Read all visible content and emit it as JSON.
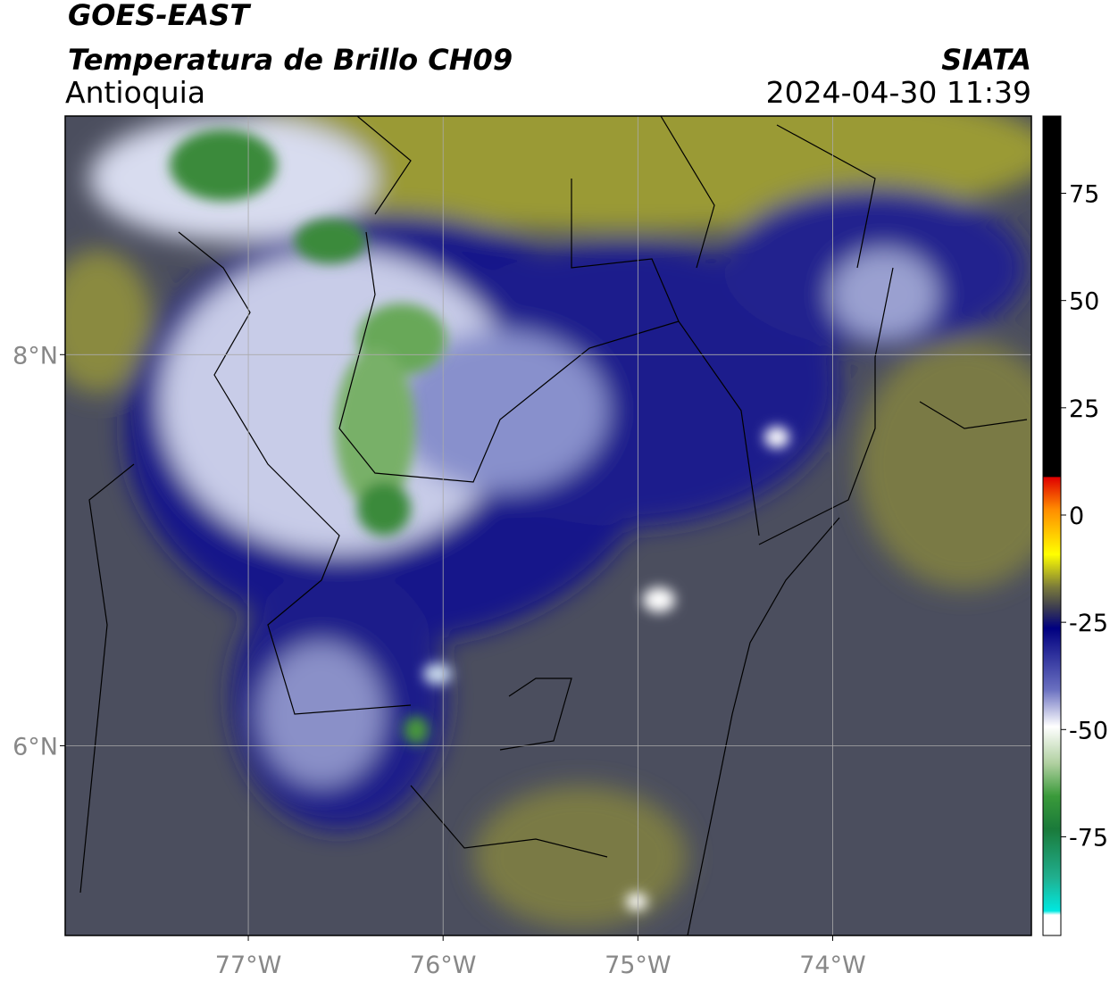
{
  "header": {
    "title": "GOES-EAST",
    "subtitle": "Temperatura de Brillo CH09",
    "region": "Antioquia",
    "source": "SIATA",
    "timestamp": "2024-04-30 11:39"
  },
  "map": {
    "xlim": [
      -77.94,
      -72.98
    ],
    "ylim": [
      5.03,
      9.22
    ],
    "xticks": [
      {
        "value": -77,
        "label": "77°W"
      },
      {
        "value": -76,
        "label": "76°W"
      },
      {
        "value": -75,
        "label": "75°W"
      },
      {
        "value": -74,
        "label": "74°W"
      }
    ],
    "yticks": [
      {
        "value": 8,
        "label": "8°N"
      },
      {
        "value": 6,
        "label": "6°N"
      }
    ],
    "grid": true
  },
  "colorbar": {
    "lim": [
      -98,
      93
    ],
    "ticks": [
      75,
      50,
      25,
      0,
      -25,
      -50,
      -75
    ]
  }
}
